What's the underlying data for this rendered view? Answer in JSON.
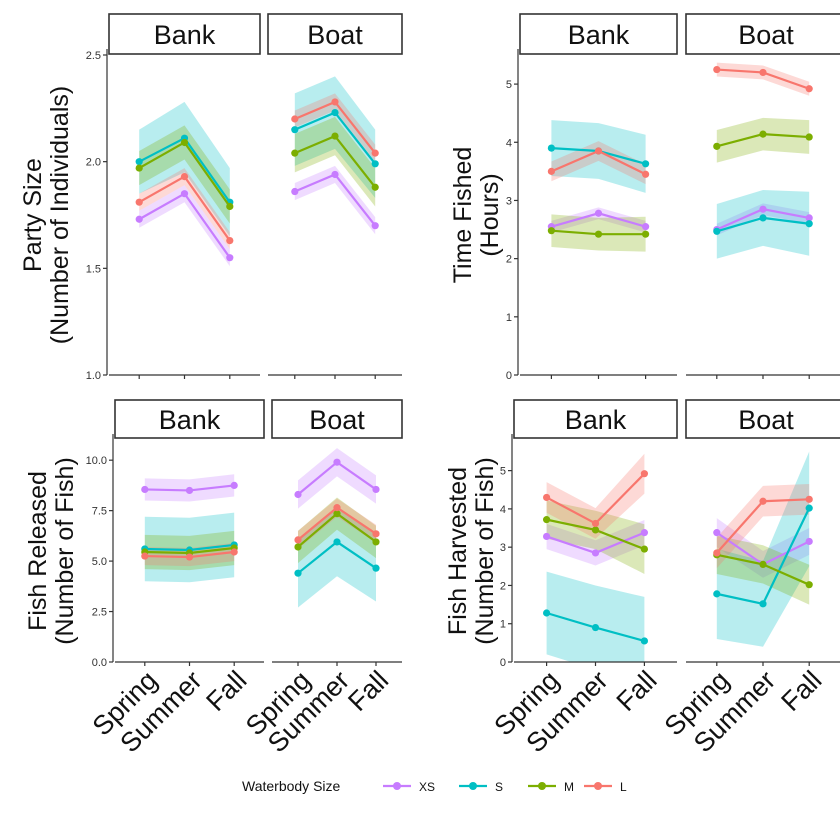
{
  "legend": {
    "title": "Waterbody Size",
    "items": [
      {
        "key": "XS",
        "label": "XS",
        "color": "#c77cff"
      },
      {
        "key": "S",
        "label": "S",
        "color": "#00bfc4"
      },
      {
        "key": "M",
        "label": "M",
        "color": "#7cae00"
      },
      {
        "key": "L",
        "label": "L",
        "color": "#f8766d"
      }
    ]
  },
  "chart_data": [
    {
      "type": "line",
      "ylabel": [
        "Party Size",
        "(Number of Individuals)"
      ],
      "ylim": [
        1.0,
        2.5
      ],
      "yticks": [
        "1.0",
        "1.5",
        "2.0",
        "2.5"
      ],
      "categories": [
        "Spring",
        "Summer",
        "Fall"
      ],
      "facets": [
        {
          "label": "Bank",
          "series": [
            {
              "name": "XS",
              "values": [
                1.73,
                1.85,
                1.55
              ],
              "lower": [
                1.69,
                1.81,
                1.51
              ],
              "upper": [
                1.77,
                1.89,
                1.59
              ]
            },
            {
              "name": "S",
              "values": [
                2.0,
                2.11,
                1.81
              ],
              "lower": [
                1.85,
                1.95,
                1.65
              ],
              "upper": [
                2.15,
                2.28,
                1.97
              ]
            },
            {
              "name": "M",
              "values": [
                1.97,
                2.09,
                1.79
              ],
              "lower": [
                1.89,
                2.01,
                1.71
              ],
              "upper": [
                2.05,
                2.17,
                1.87
              ]
            },
            {
              "name": "L",
              "values": [
                1.81,
                1.93,
                1.63
              ],
              "lower": [
                1.77,
                1.89,
                1.59
              ],
              "upper": [
                1.85,
                1.97,
                1.67
              ]
            }
          ]
        },
        {
          "label": "Boat",
          "series": [
            {
              "name": "XS",
              "values": [
                1.86,
                1.94,
                1.7
              ],
              "lower": [
                1.82,
                1.9,
                1.66
              ],
              "upper": [
                1.9,
                1.98,
                1.74
              ]
            },
            {
              "name": "S",
              "values": [
                2.15,
                2.23,
                1.99
              ],
              "lower": [
                1.98,
                2.06,
                1.83
              ],
              "upper": [
                2.32,
                2.4,
                2.15
              ]
            },
            {
              "name": "M",
              "values": [
                2.04,
                2.12,
                1.88
              ],
              "lower": [
                1.95,
                2.03,
                1.79
              ],
              "upper": [
                2.13,
                2.21,
                1.97
              ]
            },
            {
              "name": "L",
              "values": [
                2.2,
                2.28,
                2.04
              ],
              "lower": [
                2.16,
                2.24,
                2.0
              ],
              "upper": [
                2.24,
                2.32,
                2.08
              ]
            }
          ]
        }
      ]
    },
    {
      "type": "line",
      "ylabel": [
        "Time Fished",
        "(Hours)"
      ],
      "ylim": [
        0,
        5.5
      ],
      "yticks": [
        "0",
        "1",
        "2",
        "3",
        "4",
        "5"
      ],
      "categories": [
        "Spring",
        "Summer",
        "Fall"
      ],
      "facets": [
        {
          "label": "Bank",
          "series": [
            {
              "name": "XS",
              "values": [
                2.55,
                2.78,
                2.55
              ],
              "lower": [
                2.45,
                2.68,
                2.45
              ],
              "upper": [
                2.65,
                2.88,
                2.65
              ]
            },
            {
              "name": "S",
              "values": [
                3.9,
                3.85,
                3.63
              ],
              "lower": [
                3.42,
                3.37,
                3.13
              ],
              "upper": [
                4.38,
                4.33,
                4.13
              ]
            },
            {
              "name": "M",
              "values": [
                2.48,
                2.42,
                2.42
              ],
              "lower": [
                2.2,
                2.14,
                2.12
              ],
              "upper": [
                2.76,
                2.7,
                2.72
              ]
            },
            {
              "name": "L",
              "values": [
                3.5,
                3.85,
                3.45
              ],
              "lower": [
                3.33,
                3.68,
                3.28
              ],
              "upper": [
                3.67,
                4.02,
                3.62
              ]
            }
          ]
        },
        {
          "label": "Boat",
          "series": [
            {
              "name": "XS",
              "values": [
                2.5,
                2.85,
                2.7
              ],
              "lower": [
                2.4,
                2.75,
                2.6
              ],
              "upper": [
                2.6,
                2.95,
                2.8
              ]
            },
            {
              "name": "S",
              "values": [
                2.47,
                2.7,
                2.6
              ],
              "lower": [
                2.0,
                2.22,
                2.05
              ],
              "upper": [
                2.94,
                3.18,
                3.15
              ]
            },
            {
              "name": "M",
              "values": [
                3.93,
                4.14,
                4.09
              ],
              "lower": [
                3.65,
                3.86,
                3.8
              ],
              "upper": [
                4.21,
                4.42,
                4.38
              ]
            },
            {
              "name": "L",
              "values": [
                5.25,
                5.2,
                4.92
              ],
              "lower": [
                5.13,
                5.08,
                4.8
              ],
              "upper": [
                5.37,
                5.32,
                5.04
              ]
            }
          ]
        }
      ]
    },
    {
      "type": "line",
      "ylabel": [
        "Fish Released",
        "(Number of Fish)"
      ],
      "ylim": [
        0,
        11
      ],
      "yticks": [
        "0.0",
        "2.5",
        "5.0",
        "7.5",
        "10.0"
      ],
      "categories": [
        "Spring",
        "Summer",
        "Fall"
      ],
      "facets": [
        {
          "label": "Bank",
          "series": [
            {
              "name": "XS",
              "values": [
                8.55,
                8.5,
                8.75
              ],
              "lower": [
                8.0,
                7.95,
                8.2
              ],
              "upper": [
                9.1,
                9.05,
                9.3
              ]
            },
            {
              "name": "S",
              "values": [
                5.6,
                5.55,
                5.8
              ],
              "lower": [
                4.0,
                3.95,
                4.2
              ],
              "upper": [
                7.2,
                7.15,
                7.4
              ]
            },
            {
              "name": "M",
              "values": [
                5.45,
                5.4,
                5.65
              ],
              "lower": [
                4.6,
                4.55,
                4.8
              ],
              "upper": [
                6.3,
                6.25,
                6.5
              ]
            },
            {
              "name": "L",
              "values": [
                5.25,
                5.2,
                5.45
              ],
              "lower": [
                4.8,
                4.75,
                5.0
              ],
              "upper": [
                5.7,
                5.65,
                5.9
              ]
            }
          ]
        },
        {
          "label": "Boat",
          "series": [
            {
              "name": "XS",
              "values": [
                8.3,
                9.9,
                8.55
              ],
              "lower": [
                7.6,
                9.2,
                7.85
              ],
              "upper": [
                9.0,
                10.6,
                9.25
              ]
            },
            {
              "name": "S",
              "values": [
                4.4,
                5.95,
                4.65
              ],
              "lower": [
                2.7,
                4.25,
                3.0
              ],
              "upper": [
                6.1,
                7.65,
                6.3
              ]
            },
            {
              "name": "M",
              "values": [
                5.7,
                7.35,
                5.95
              ],
              "lower": [
                4.9,
                6.55,
                5.15
              ],
              "upper": [
                6.5,
                8.15,
                6.75
              ]
            },
            {
              "name": "L",
              "values": [
                6.05,
                7.65,
                6.35
              ],
              "lower": [
                5.6,
                7.2,
                5.9
              ],
              "upper": [
                6.5,
                8.1,
                6.8
              ]
            }
          ]
        }
      ]
    },
    {
      "type": "line",
      "ylabel": [
        "Fish Harvested",
        "(Number of Fish)"
      ],
      "ylim": [
        0,
        5.8
      ],
      "yticks": [
        "0",
        "1",
        "2",
        "3",
        "4",
        "5"
      ],
      "categories": [
        "Spring",
        "Summer",
        "Fall"
      ],
      "facets": [
        {
          "label": "Bank",
          "series": [
            {
              "name": "XS",
              "values": [
                3.28,
                2.85,
                3.38
              ],
              "lower": [
                2.95,
                2.52,
                3.05
              ],
              "upper": [
                3.61,
                3.18,
                3.71
              ]
            },
            {
              "name": "S",
              "values": [
                1.28,
                0.9,
                0.55
              ],
              "lower": [
                0.2,
                -0.2,
                -0.6
              ],
              "upper": [
                2.36,
                2.0,
                1.7
              ]
            },
            {
              "name": "M",
              "values": [
                3.72,
                3.45,
                2.95
              ],
              "lower": [
                3.22,
                2.95,
                2.3
              ],
              "upper": [
                4.22,
                3.95,
                3.6
              ]
            },
            {
              "name": "L",
              "values": [
                4.3,
                3.62,
                4.92
              ],
              "lower": [
                3.9,
                3.22,
                4.4
              ],
              "upper": [
                4.7,
                4.02,
                5.44
              ]
            }
          ]
        },
        {
          "label": "Boat",
          "series": [
            {
              "name": "XS",
              "values": [
                3.38,
                2.55,
                3.15
              ],
              "lower": [
                3.0,
                2.2,
                2.8
              ],
              "upper": [
                3.76,
                2.9,
                3.5
              ]
            },
            {
              "name": "S",
              "values": [
                1.78,
                1.52,
                4.02
              ],
              "lower": [
                0.6,
                0.4,
                2.5
              ],
              "upper": [
                2.96,
                2.64,
                5.5
              ]
            },
            {
              "name": "M",
              "values": [
                2.8,
                2.55,
                2.02
              ],
              "lower": [
                2.3,
                2.05,
                1.5
              ],
              "upper": [
                3.3,
                3.05,
                2.54
              ]
            },
            {
              "name": "L",
              "values": [
                2.85,
                4.2,
                4.25
              ],
              "lower": [
                2.45,
                3.8,
                3.85
              ],
              "upper": [
                3.25,
                4.6,
                4.65
              ]
            }
          ]
        }
      ]
    }
  ]
}
